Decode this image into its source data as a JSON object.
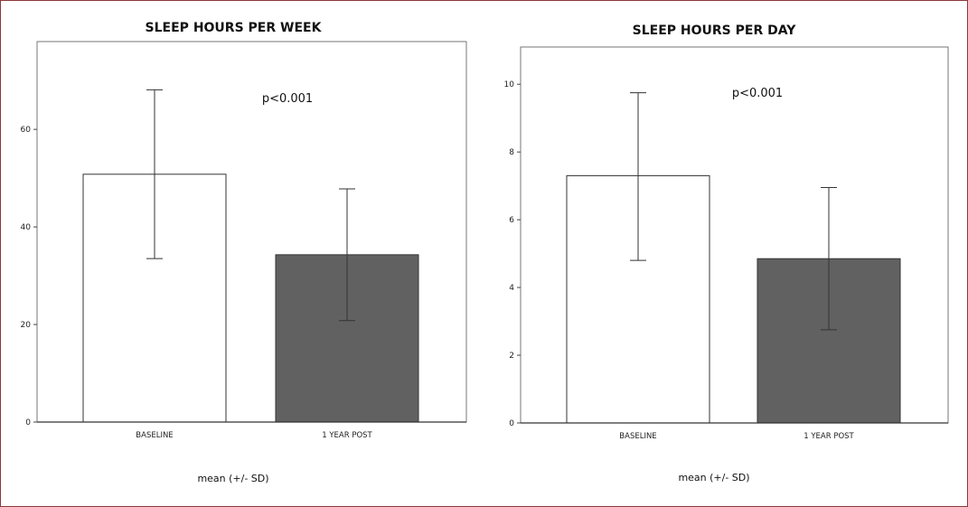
{
  "colors": {
    "frame": "#8a3a3a",
    "baseline_bar": "#ffffff",
    "post_bar": "#616161",
    "axis": "#444444"
  },
  "chart_data": [
    {
      "type": "bar",
      "title": "SLEEP HOURS PER WEEK",
      "categories": [
        "BASELINE",
        "1 YEAR POST"
      ],
      "values": [
        50.8,
        34.3
      ],
      "error_low": [
        33.5,
        20.8
      ],
      "error_high": [
        68.1,
        47.8
      ],
      "bar_colors": [
        "#ffffff",
        "#616161"
      ],
      "ylim": [
        0,
        78
      ],
      "yticks": [
        0,
        20,
        40,
        60
      ],
      "xlabel": "mean (+/- SD)",
      "annotation": "p<0.001"
    },
    {
      "type": "bar",
      "title": "SLEEP HOURS PER DAY",
      "categories": [
        "BASELINE",
        "1 YEAR POST"
      ],
      "values": [
        7.3,
        4.85
      ],
      "error_low": [
        4.8,
        2.75
      ],
      "error_high": [
        9.75,
        6.95
      ],
      "bar_colors": [
        "#ffffff",
        "#616161"
      ],
      "ylim": [
        0,
        11.1
      ],
      "yticks": [
        0,
        2,
        4,
        6,
        8,
        10
      ],
      "xlabel": "mean (+/- SD)",
      "annotation": "p<0.001"
    }
  ]
}
